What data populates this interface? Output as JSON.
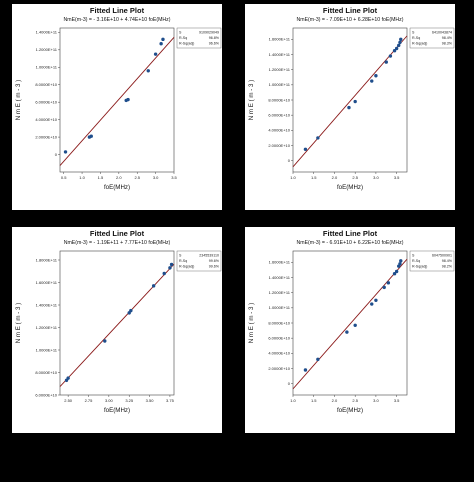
{
  "colors": {
    "background": "#000000",
    "panel": "#ffffff",
    "points": "#1f4e8c",
    "fit_line": "#8b1a1a"
  },
  "chart_data": [
    {
      "type": "scatter",
      "title": "Fitted Line Plot",
      "subtitle": "NmE(m-3) = - 3.16E+10 + 4.74E+10 foE(MHz)",
      "xlabel": "foE(MHz)",
      "ylabel": "N m E ( m - 3 )",
      "xlim": [
        0.4,
        3.5
      ],
      "ylim": [
        -20000000000.0,
        145000000000.0
      ],
      "xticks": [
        0.5,
        1.0,
        1.5,
        2.0,
        2.5,
        3.0,
        3.5
      ],
      "xtick_labels": [
        "0.5",
        "1.0",
        "1.5",
        "2.0",
        "2.5",
        "3.0",
        "3.5"
      ],
      "yticks": [
        0,
        20000000000.0,
        40000000000.0,
        60000000000.0,
        80000000000.0,
        100000000000.0,
        120000000000.0,
        140000000000.0
      ],
      "ytick_labels": [
        "0",
        "2.0000E+10",
        "4.0000E+10",
        "6.0000E+10",
        "8.0000E+10",
        "1.0000E+11",
        "1.2000E+11",
        "1.4000E+11"
      ],
      "fit": {
        "intercept": -31600000000.0,
        "slope": 47400000000.0
      },
      "stats": [
        {
          "label": "S",
          "value": "9109029049"
        },
        {
          "label": "R-Sq",
          "value": "96.8%"
        },
        {
          "label": "R-Sq(adj)",
          "value": "96.6%"
        }
      ],
      "x": [
        0.55,
        1.2,
        1.25,
        2.2,
        2.25,
        2.8,
        3.0,
        3.15,
        3.2
      ],
      "y": [
        3000000000.0,
        20000000000.0,
        21000000000.0,
        62000000000.0,
        63000000000.0,
        96000000000.0,
        115000000000.0,
        127000000000.0,
        132000000000.0
      ]
    },
    {
      "type": "scatter",
      "title": "Fitted Line Plot",
      "subtitle": "NmE(m-3) = - 7.09E+10 + 6.28E+10 foE(MHz)",
      "xlabel": "foE(MHz)",
      "ylabel": "N m E ( m - 3 )",
      "xlim": [
        1.0,
        3.75
      ],
      "ylim": [
        -15000000000.0,
        175000000000.0
      ],
      "xticks": [
        1.0,
        1.5,
        2.0,
        2.5,
        3.0,
        3.5
      ],
      "xtick_labels": [
        "1.0",
        "1.5",
        "2.0",
        "2.5",
        "3.0",
        "3.5"
      ],
      "yticks": [
        0,
        20000000000.0,
        40000000000.0,
        60000000000.0,
        80000000000.0,
        100000000000.0,
        120000000000.0,
        140000000000.0,
        160000000000.0
      ],
      "ytick_labels": [
        "0",
        "2.0000E+10",
        "4.0000E+10",
        "6.0000E+10",
        "8.0000E+10",
        "1.0000E+11",
        "1.2000E+11",
        "1.4000E+11",
        "1.6000E+11"
      ],
      "fit": {
        "intercept": -70900000000.0,
        "slope": 62800000000.0
      },
      "stats": [
        {
          "label": "S",
          "value": "6410043874"
        },
        {
          "label": "R-Sq",
          "value": "98.4%"
        },
        {
          "label": "R-Sq(adj)",
          "value": "98.3%"
        }
      ],
      "x": [
        1.3,
        1.6,
        2.35,
        2.5,
        2.9,
        3.0,
        3.25,
        3.35,
        3.45,
        3.5,
        3.55,
        3.58,
        3.6
      ],
      "y": [
        15000000000.0,
        30000000000.0,
        70000000000.0,
        78000000000.0,
        105000000000.0,
        112000000000.0,
        130000000000.0,
        138000000000.0,
        145000000000.0,
        148000000000.0,
        152000000000.0,
        156000000000.0,
        160000000000.0
      ]
    },
    {
      "type": "scatter",
      "title": "Fitted Line Plot",
      "subtitle": "NmE(m-3) = - 1.19E+11 + 7.77E+10 foE(MHz)",
      "xlabel": "foE(MHz)",
      "ylabel": "N m E ( m - 3 )",
      "xlim": [
        2.4,
        3.8
      ],
      "ylim": [
        60000000000.0,
        188000000000.0
      ],
      "xticks": [
        2.5,
        2.75,
        3.0,
        3.25,
        3.5,
        3.75
      ],
      "xtick_labels": [
        "2.50",
        "2.75",
        "3.00",
        "3.25",
        "3.50",
        "3.75"
      ],
      "yticks": [
        60000000000.0,
        80000000000.0,
        100000000000.0,
        120000000000.0,
        140000000000.0,
        160000000000.0,
        180000000000.0
      ],
      "ytick_labels": [
        "6.0000E+10",
        "8.0000E+10",
        "1.0000E+11",
        "1.2000E+11",
        "1.4000E+11",
        "1.6000E+11",
        "1.8000E+11"
      ],
      "fit": {
        "intercept": -119000000000.0,
        "slope": 77700000000.0
      },
      "stats": [
        {
          "label": "S",
          "value": "2345539110"
        },
        {
          "label": "R-Sq",
          "value": "99.6%"
        },
        {
          "label": "R-Sq(adj)",
          "value": "99.6%"
        }
      ],
      "x": [
        2.48,
        2.5,
        2.95,
        3.25,
        3.27,
        3.55,
        3.68,
        3.75,
        3.77
      ],
      "y": [
        73000000000.0,
        75000000000.0,
        108000000000.0,
        133000000000.0,
        135000000000.0,
        157000000000.0,
        168000000000.0,
        173000000000.0,
        176000000000.0
      ]
    },
    {
      "type": "scatter",
      "title": "Fitted Line Plot",
      "subtitle": "NmE(m-3) = - 6.91E+10 + 6.22E+10 foE(MHz)",
      "xlabel": "foE(MHz)",
      "ylabel": "N m E ( m - 3 )",
      "xlim": [
        1.0,
        3.75
      ],
      "ylim": [
        -15000000000.0,
        175000000000.0
      ],
      "xticks": [
        1.0,
        1.5,
        2.0,
        2.5,
        3.0,
        3.5
      ],
      "xtick_labels": [
        "1.0",
        "1.5",
        "2.0",
        "2.5",
        "3.0",
        "3.5"
      ],
      "yticks": [
        0,
        20000000000.0,
        40000000000.0,
        60000000000.0,
        80000000000.0,
        100000000000.0,
        120000000000.0,
        140000000000.0,
        160000000000.0
      ],
      "ytick_labels": [
        "0",
        "2.0000E+10",
        "4.0000E+10",
        "6.0000E+10",
        "8.0000E+10",
        "1.0000E+11",
        "1.2000E+11",
        "1.4000E+11",
        "1.6000E+11"
      ],
      "fit": {
        "intercept": -69100000000.0,
        "slope": 62200000000.0
      },
      "stats": [
        {
          "label": "S",
          "value": "6047500901"
        },
        {
          "label": "R-Sq",
          "value": "98.4%"
        },
        {
          "label": "R-Sq(adj)",
          "value": "98.2%"
        }
      ],
      "x": [
        1.3,
        1.6,
        2.3,
        2.5,
        2.9,
        3.0,
        3.2,
        3.3,
        3.45,
        3.5,
        3.55,
        3.58,
        3.6
      ],
      "y": [
        18000000000.0,
        32000000000.0,
        68000000000.0,
        77000000000.0,
        105000000000.0,
        110000000000.0,
        127000000000.0,
        133000000000.0,
        145000000000.0,
        148000000000.0,
        155000000000.0,
        158000000000.0,
        162000000000.0
      ]
    }
  ]
}
